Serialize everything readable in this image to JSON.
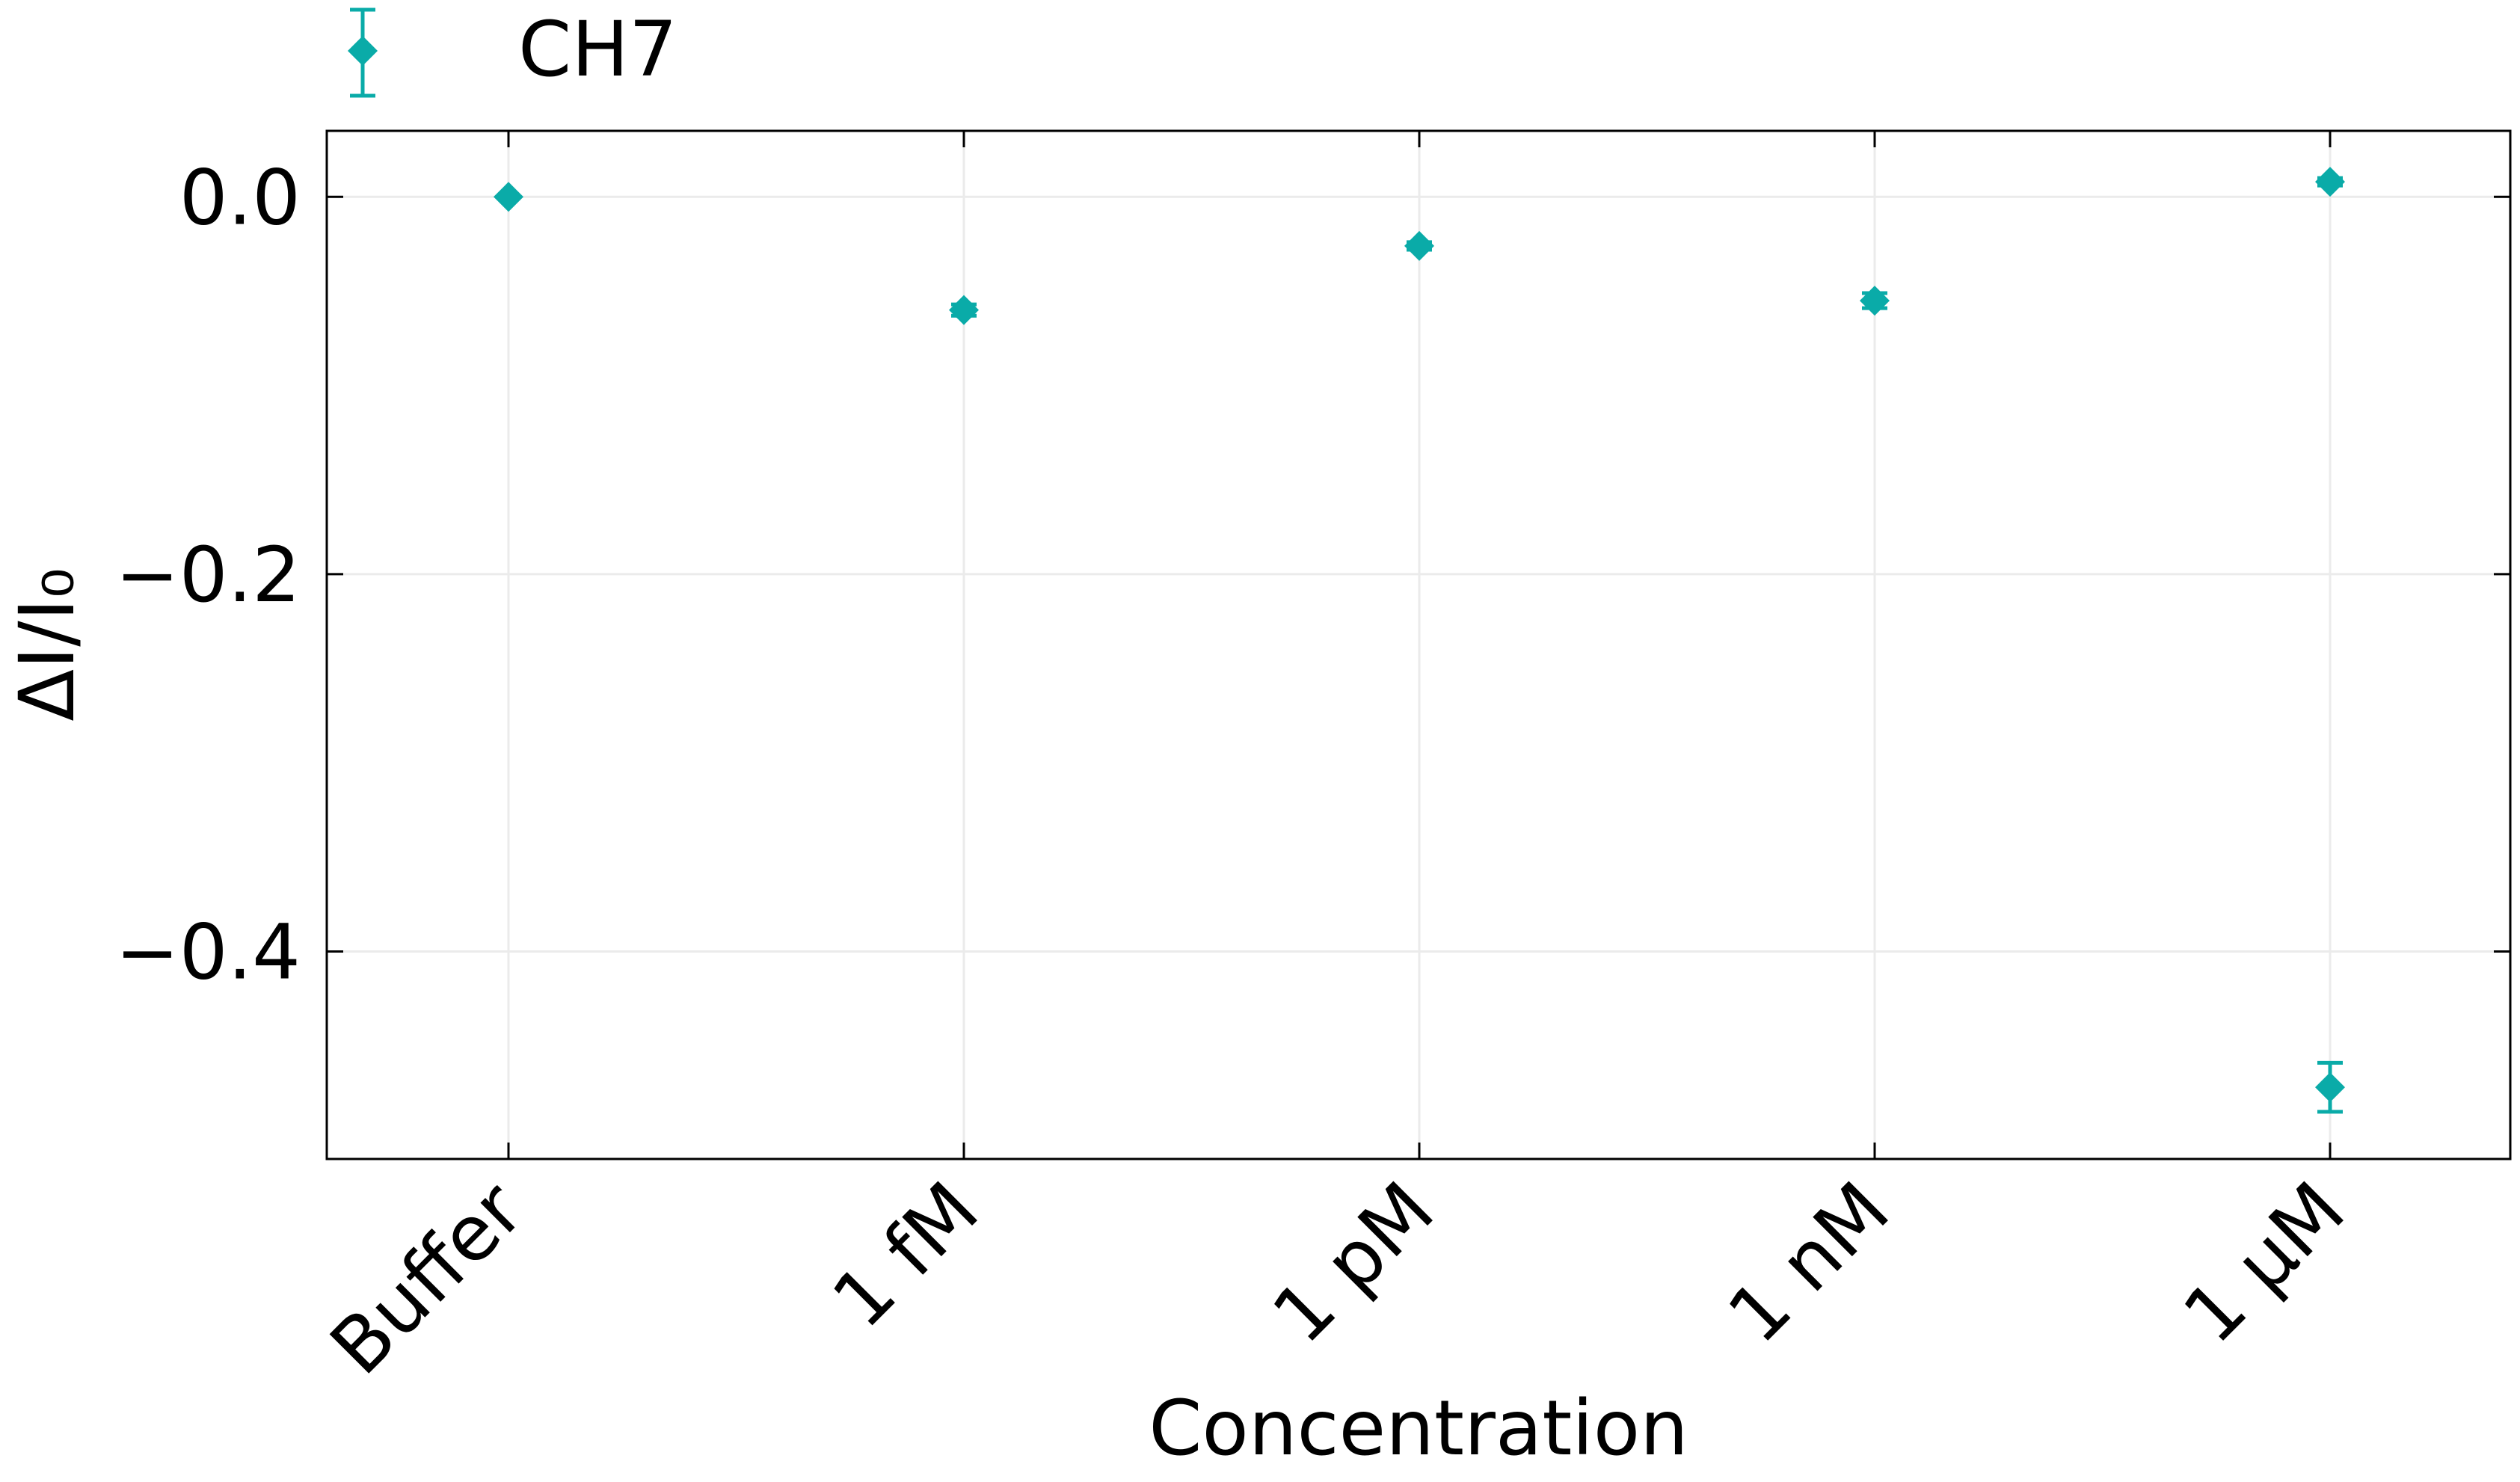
{
  "chart_data": {
    "type": "scatter",
    "title": "",
    "xlabel": "Concentration",
    "ylabel": "ΔI/I₀",
    "categories": [
      "Buffer",
      "1 fM",
      "1 pM",
      "1 nM",
      "1 μM"
    ],
    "ylim": [
      -0.51,
      0.035
    ],
    "yticks": [
      0.0,
      -0.2,
      -0.4
    ],
    "ytick_labels": [
      "0.0",
      "−0.2",
      "−0.4"
    ],
    "grid": true,
    "legend_position": "top-left, above plot",
    "series": [
      {
        "name": "CH7",
        "color": "#0aaba8",
        "marker": "diamond",
        "points": [
          {
            "category": "Buffer",
            "y": 0.0,
            "err": 0.0
          },
          {
            "category": "1 fM",
            "y": -0.06,
            "err": 0.003
          },
          {
            "category": "1 pM",
            "y": -0.026,
            "err": 0.002
          },
          {
            "category": "1 nM",
            "y": -0.055,
            "err": 0.004
          },
          {
            "category": "1 μM",
            "y": 0.008,
            "err": 0.002
          },
          {
            "category": "1 μM",
            "y": -0.472,
            "err": 0.013
          }
        ]
      }
    ]
  }
}
